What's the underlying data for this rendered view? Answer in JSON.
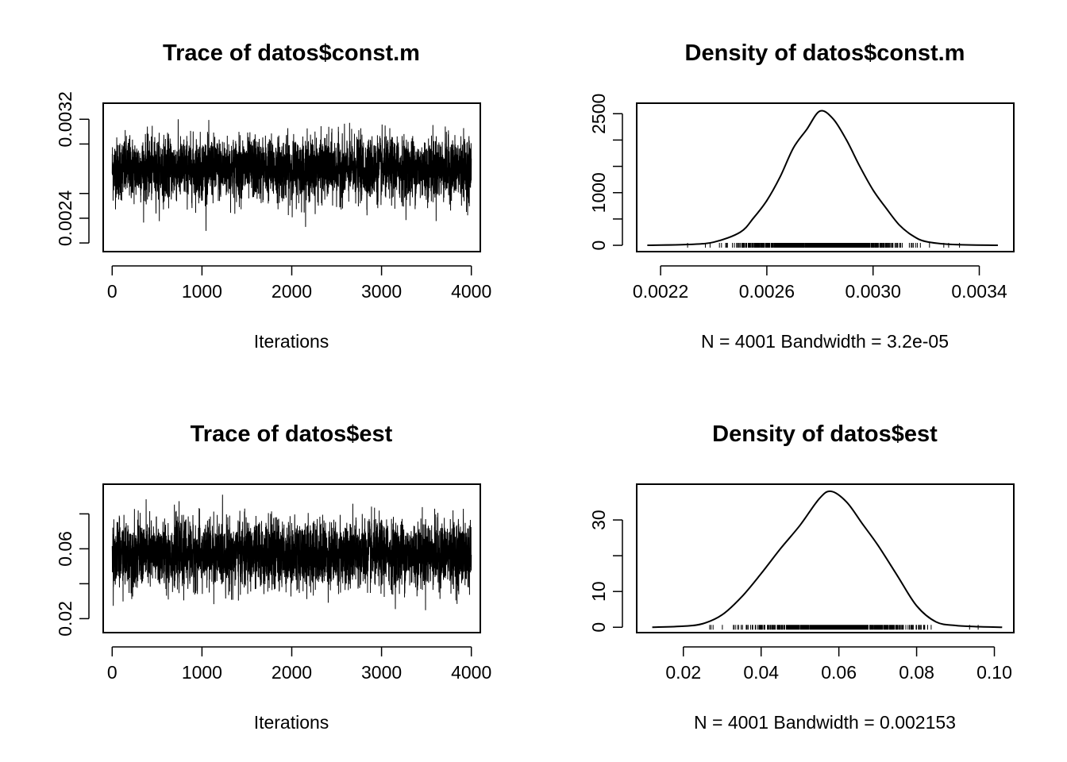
{
  "chart_data": [
    {
      "type": "line",
      "panel": "trace",
      "title": "Trace of datos$const.m",
      "xlabel": "Iterations",
      "ylabel": "",
      "x_ticks": [
        "0",
        "1000",
        "2000",
        "3000",
        "4000"
      ],
      "x_tick_values": [
        0,
        1000,
        2000,
        3000,
        4000
      ],
      "y_ticks": [
        "0.0024",
        "0.0032"
      ],
      "y_tick_values": [
        0.0024,
        0.0032
      ],
      "y_minor_tick_values": [
        0.0022,
        0.0026,
        0.003
      ],
      "xlim": [
        -100,
        4100
      ],
      "ylim": [
        0.00213,
        0.00333
      ],
      "series": {
        "n": 4001,
        "center": 0.0028,
        "sd": 0.000125,
        "min": 0.00215,
        "max": 0.0032
      }
    },
    {
      "type": "area",
      "panel": "density",
      "title": "Density of datos$const.m",
      "xlabel": "N = 4001   Bandwidth = 3.2e-05",
      "ylabel": "",
      "x_ticks": [
        "0.0022",
        "0.0026",
        "0.0030",
        "0.0034"
      ],
      "x_tick_values": [
        0.0022,
        0.0026,
        0.003,
        0.0034
      ],
      "y_ticks": [
        "0",
        "1000",
        "2500"
      ],
      "y_tick_values": [
        0,
        1000,
        2500
      ],
      "y_minor_tick_values": [
        500,
        1500,
        2000
      ],
      "xlim": [
        0.00211,
        0.00353
      ],
      "ylim": [
        -120,
        2700
      ],
      "x": [
        0.00215,
        0.0023,
        0.0024,
        0.0025,
        0.00255,
        0.0026,
        0.00265,
        0.0027,
        0.00275,
        0.0028,
        0.00285,
        0.0029,
        0.00295,
        0.003,
        0.00305,
        0.0031,
        0.00315,
        0.0032,
        0.0033,
        0.00347
      ],
      "y": [
        0,
        15,
        60,
        250,
        520,
        850,
        1300,
        1850,
        2200,
        2550,
        2400,
        2000,
        1500,
        1050,
        700,
        380,
        180,
        70,
        15,
        0
      ]
    },
    {
      "type": "line",
      "panel": "trace",
      "title": "Trace of datos$est",
      "xlabel": "Iterations",
      "ylabel": "",
      "x_ticks": [
        "0",
        "1000",
        "2000",
        "3000",
        "4000"
      ],
      "x_tick_values": [
        0,
        1000,
        2000,
        3000,
        4000
      ],
      "y_ticks": [
        "0.02",
        "0.06"
      ],
      "y_tick_values": [
        0.02,
        0.06
      ],
      "y_minor_tick_values": [
        0.04,
        0.08
      ],
      "xlim": [
        -100,
        4100
      ],
      "ylim": [
        0.012,
        0.097
      ],
      "series": {
        "n": 4001,
        "center": 0.057,
        "sd": 0.0095,
        "min": 0.018,
        "max": 0.091
      }
    },
    {
      "type": "area",
      "panel": "density",
      "title": "Density of datos$est",
      "xlabel": "N = 4001   Bandwidth = 0.002153",
      "ylabel": "",
      "x_ticks": [
        "0.02",
        "0.04",
        "0.06",
        "0.08",
        "0.10"
      ],
      "x_tick_values": [
        0.02,
        0.04,
        0.06,
        0.08,
        0.1
      ],
      "y_ticks": [
        "0",
        "10",
        "30"
      ],
      "y_tick_values": [
        0,
        10,
        30
      ],
      "y_minor_tick_values": [
        20
      ],
      "xlim": [
        0.008,
        0.105
      ],
      "ylim": [
        -1.5,
        40
      ],
      "x": [
        0.012,
        0.02,
        0.025,
        0.03,
        0.035,
        0.04,
        0.045,
        0.05,
        0.055,
        0.058,
        0.062,
        0.066,
        0.07,
        0.075,
        0.08,
        0.085,
        0.09,
        0.095,
        0.102
      ],
      "y": [
        0,
        0.3,
        1,
        3.5,
        8.5,
        15,
        22,
        28.5,
        36,
        38,
        35,
        29,
        23,
        14.5,
        6,
        1.5,
        0.5,
        0.2,
        0
      ]
    }
  ]
}
